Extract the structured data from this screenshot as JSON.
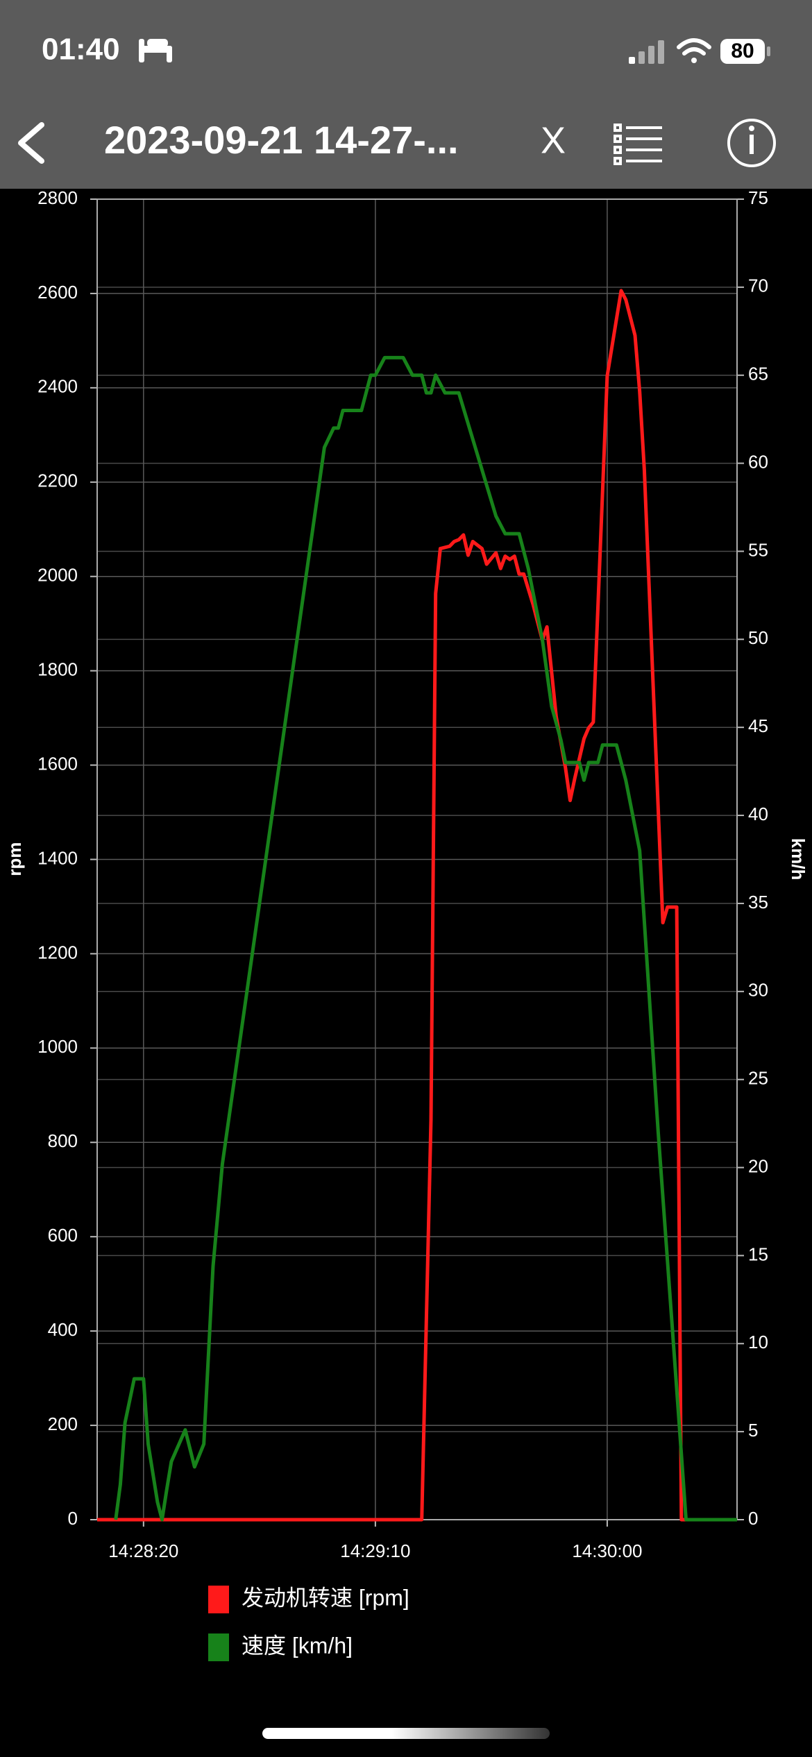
{
  "status": {
    "time": "01:40",
    "battery": "80"
  },
  "nav": {
    "title": "2023-09-21 14-27-...",
    "close": "X"
  },
  "chart_data": {
    "type": "line",
    "y_label": "rpm",
    "y2_label": "km/h",
    "xlim": [
      "14:28:10",
      "14:30:28"
    ],
    "xticks": [
      "14:28:20",
      "14:29:10",
      "14:30:00"
    ],
    "ylim": [
      0,
      2800
    ],
    "yticks": [
      0,
      200,
      400,
      600,
      800,
      1000,
      1200,
      1400,
      1600,
      1800,
      2000,
      2200,
      2400,
      2600,
      2800
    ],
    "y2lim": [
      0,
      75
    ],
    "y2ticks": [
      0,
      5,
      10,
      15,
      20,
      25,
      30,
      35,
      40,
      45,
      50,
      55,
      60,
      65,
      70,
      75
    ],
    "grid": true,
    "series": [
      {
        "name": "发动机转速 [rpm]",
        "color": "#ff1a1a",
        "x": [
          "14:28:10",
          "14:29:20",
          "14:29:22",
          "14:29:23",
          "14:29:24",
          "14:29:26",
          "14:29:27",
          "14:29:28",
          "14:29:29",
          "14:29:30",
          "14:29:31",
          "14:29:33",
          "14:29:34",
          "14:29:36",
          "14:29:37",
          "14:29:38",
          "14:29:39",
          "14:29:40",
          "14:29:41",
          "14:29:42",
          "14:29:44",
          "14:29:46",
          "14:29:47",
          "14:29:49",
          "14:29:51",
          "14:29:52",
          "14:29:53",
          "14:29:55",
          "14:29:56",
          "14:29:57",
          "14:30:00",
          "14:30:02",
          "14:30:03",
          "14:30:04",
          "14:30:06",
          "14:30:07",
          "14:30:08",
          "14:30:12",
          "14:30:13",
          "14:30:15",
          "14:30:16",
          "14:30:28"
        ],
        "values": [
          0,
          0,
          848,
          1964,
          2059,
          2064,
          2074,
          2078,
          2088,
          2045,
          2074,
          2059,
          2026,
          2050,
          2017,
          2043,
          2036,
          2043,
          2005,
          2005,
          1941,
          1865,
          1893,
          1703,
          1594,
          1525,
          1572,
          1656,
          1679,
          1691,
          2425,
          2546,
          2606,
          2587,
          2511,
          2392,
          2226,
          1266,
          1299,
          1299,
          0,
          0
        ]
      },
      {
        "name": "速度 [km/h]",
        "color": "#17821a",
        "axis": "y2",
        "x": [
          "14:28:14",
          "14:28:15",
          "14:28:16",
          "14:28:18",
          "14:28:20",
          "14:28:21",
          "14:28:23",
          "14:28:24",
          "14:28:25",
          "14:28:26",
          "14:28:29",
          "14:28:31",
          "14:28:33",
          "14:28:35",
          "14:28:37",
          "14:28:59",
          "14:29:01",
          "14:29:02",
          "14:29:03",
          "14:29:07",
          "14:29:09",
          "14:29:10",
          "14:29:12",
          "14:29:16",
          "14:29:18",
          "14:29:20",
          "14:29:21",
          "14:29:22",
          "14:29:23",
          "14:29:25",
          "14:29:28",
          "14:29:36",
          "14:29:38",
          "14:29:41",
          "14:29:43",
          "14:29:46",
          "14:29:48",
          "14:29:50",
          "14:29:51",
          "14:29:54",
          "14:29:55",
          "14:29:56",
          "14:29:58",
          "14:29:59",
          "14:30:02",
          "14:30:04",
          "14:30:07",
          "14:30:11",
          "14:30:15",
          "14:30:17",
          "14:30:28"
        ],
        "values": [
          0,
          2,
          5.5,
          8,
          8,
          4.3,
          1,
          0,
          1.7,
          3.3,
          5.1,
          3,
          4.3,
          14.4,
          20.2,
          60.9,
          62,
          62,
          63,
          63,
          65,
          65,
          66,
          66,
          65,
          65,
          64,
          64,
          65,
          64,
          64,
          57,
          56,
          56,
          54,
          50,
          46.2,
          44.3,
          43,
          43,
          42,
          43,
          43,
          44,
          44,
          42,
          38,
          22,
          7.4,
          0,
          0
        ]
      }
    ]
  }
}
